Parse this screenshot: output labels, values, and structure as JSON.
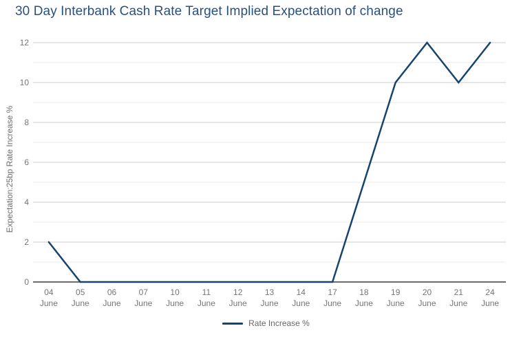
{
  "chart_data": {
    "type": "line",
    "title": "30 Day Interbank Cash Rate Target Implied Expectation of change",
    "ylabel": "Expectation:25bp Rate Increase %",
    "xlabel": "",
    "categories": [
      "04 June",
      "05 June",
      "06 June",
      "07 June",
      "10 June",
      "11 June",
      "12 June",
      "13 June",
      "14 June",
      "17 June",
      "18 June",
      "19 June",
      "20 June",
      "21 June",
      "24 June"
    ],
    "series": [
      {
        "name": "Rate Increase %",
        "values": [
          2,
          0,
          0,
          0,
          0,
          0,
          0,
          0,
          0,
          0,
          5,
          10,
          12,
          10,
          12
        ]
      }
    ],
    "ylim": [
      0,
      12
    ],
    "ytick_labeled_step": 2,
    "grid_step": 1,
    "grid": "horizontal gridlines every 1 unit, labeled every 2",
    "legend_position": "bottom-center",
    "colors": {
      "title": "#2a507e",
      "line": "#17436f",
      "axis_text": "#757575",
      "grid_major": "#cccccc",
      "grid_minor": "#e9e9e9",
      "baseline": "#383838",
      "background": "#ffffff"
    }
  }
}
